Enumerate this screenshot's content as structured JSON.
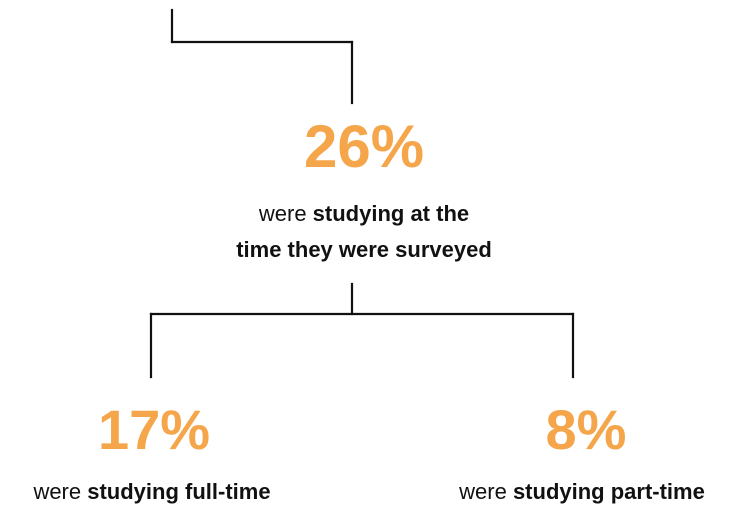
{
  "colors": {
    "accent": "#f5a54a",
    "line": "#111111",
    "text": "#111111"
  },
  "top": {
    "percent": "26%",
    "line1_plain": "were ",
    "line1_bold": "studying at the",
    "line2_bold": "time they were surveyed"
  },
  "left": {
    "percent": "17%",
    "plain": "were ",
    "bold": "studying full-time"
  },
  "right": {
    "percent": "8%",
    "plain": "were ",
    "bold": "studying part-time"
  }
}
